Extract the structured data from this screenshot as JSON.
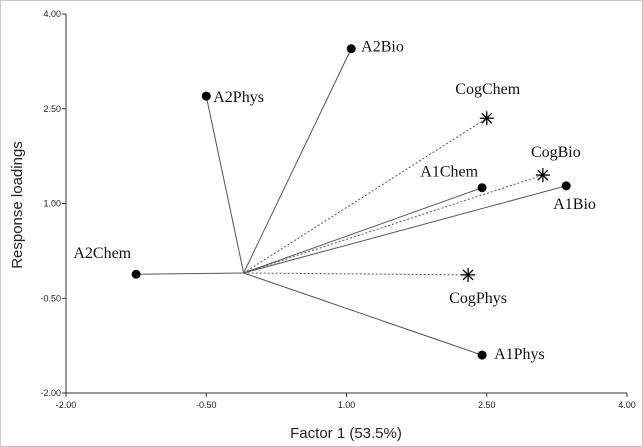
{
  "chart_data": {
    "type": "scatter",
    "subtype": "biplot",
    "title": "",
    "xlabel": "Factor 1 (53.5%)",
    "ylabel": "Response loadings",
    "xlim": [
      -2.0,
      4.0
    ],
    "ylim": [
      -2.0,
      4.0
    ],
    "x_ticks": [
      "-2.00",
      "-0.50",
      "1.00",
      "2.50",
      "4.00"
    ],
    "y_ticks": [
      "-2.00",
      "-0.50",
      "1.00",
      "2.50",
      "4.00"
    ],
    "origin": {
      "x": -0.1,
      "y": -0.1
    },
    "grid": false,
    "legend": "none",
    "series": [
      {
        "name": "",
        "marker": "dot",
        "line_style": "solid",
        "points": [
          {
            "label": "A2Bio",
            "x": 1.05,
            "y": 3.45
          },
          {
            "label": "A2Phys",
            "x": -0.5,
            "y": 2.7
          },
          {
            "label": "A1Chem",
            "x": 2.45,
            "y": 1.25
          },
          {
            "label": "A1Bio",
            "x": 3.35,
            "y": 1.28
          },
          {
            "label": "A2Chem",
            "x": -1.25,
            "y": -0.12
          },
          {
            "label": "A1Phys",
            "x": 2.45,
            "y": -1.4
          }
        ]
      },
      {
        "name": "",
        "marker": "star",
        "line_style": "dotted",
        "points": [
          {
            "label": "CogChem",
            "x": 2.5,
            "y": 2.35
          },
          {
            "label": "CogBio",
            "x": 3.1,
            "y": 1.45
          },
          {
            "label": "CogPhys",
            "x": 2.3,
            "y": -0.13
          }
        ]
      }
    ]
  }
}
